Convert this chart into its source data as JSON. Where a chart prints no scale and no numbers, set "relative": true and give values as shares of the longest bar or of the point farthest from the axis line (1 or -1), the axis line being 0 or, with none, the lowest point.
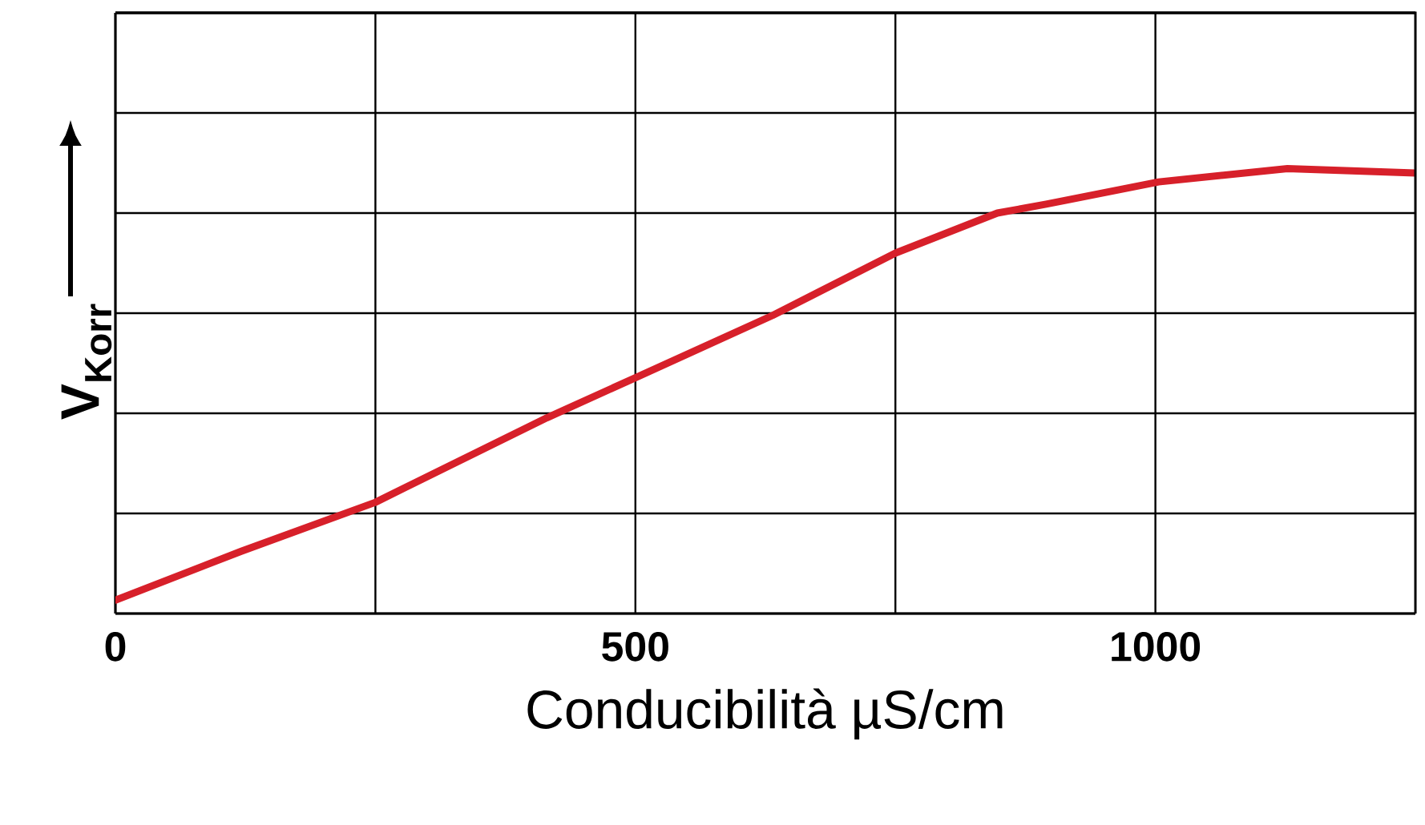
{
  "chart_data": {
    "type": "line",
    "xlabel": "Conducibilità µS/cm",
    "ylabel": "V$_{Korr}$",
    "relative": true,
    "x": [
      0,
      121,
      250,
      415,
      500,
      632,
      750,
      848,
      895,
      1003,
      1127,
      1250
    ],
    "series": [
      {
        "color": "#d7202a",
        "values": [
          0.03,
          0.14,
          0.25,
          0.44,
          0.53,
          0.67,
          0.81,
          0.9,
          0.92,
          0.97,
          1.0,
          0.99
        ]
      }
    ],
    "xlim": [
      0,
      1250
    ],
    "xticks": [
      0,
      {
        "value": 250,
        "label": null
      },
      500,
      {
        "value": 750,
        "label": null
      },
      1000
    ],
    "grid": true,
    "tick_labels": "x",
    "marker": "none",
    "line_style": "solid"
  }
}
